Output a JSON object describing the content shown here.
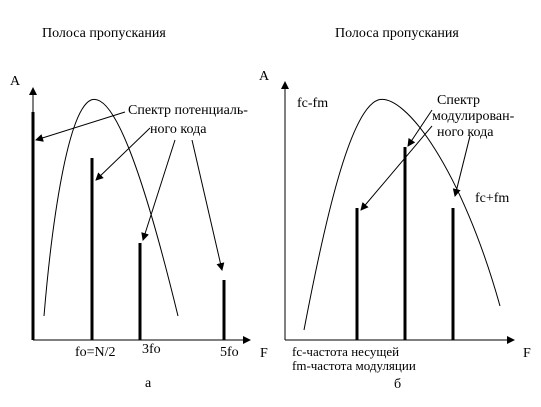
{
  "left": {
    "title": "Полоса пропускания",
    "axis_y": "A",
    "callout_line1": "Спектр потенциаль-",
    "callout_line2": "ного кода",
    "tick_fo": "fo=N/2",
    "tick_3fo": "3fo",
    "tick_5fo": "5fo",
    "axis_x": "F",
    "caption": "а"
  },
  "right": {
    "title": "Полоса пропускания",
    "axis_y": "A",
    "label_fc_minus": "fc-fm",
    "callout_line1": "Спектр",
    "callout_line2": "модулирован-",
    "callout_line3": "ного кода",
    "label_fc_plus": "fc+fm",
    "legend_line1": "fc-частота несущей",
    "legend_line2": "fm-частота модуляции",
    "axis_x": "F",
    "caption": "б"
  }
}
